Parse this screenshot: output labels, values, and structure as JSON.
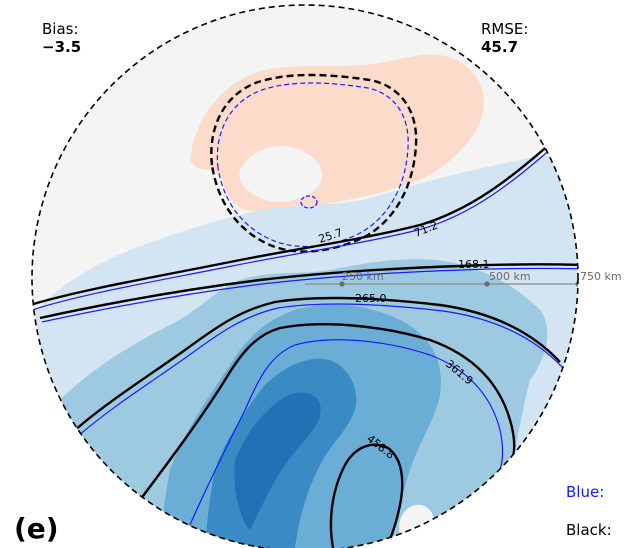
{
  "stats": {
    "bias_label": "Bias:",
    "bias_value": "−3.5",
    "rmse_label": "RMSE:",
    "rmse_value": "45.7"
  },
  "panel_label": "(e)",
  "legend": {
    "blue_label": "Blue:",
    "black_label": "Black:",
    "blue_color": "#1a1aff",
    "black_color": "#000000"
  },
  "range_rings": [
    "250 km",
    "500 km",
    "750 km"
  ],
  "contour_labels": [
    "25.7",
    "71.2",
    "168.1",
    "265.0",
    "361.9",
    "458.8"
  ],
  "colors": {
    "positive_fill": "#fddbcb",
    "neutral_fill": "#f4f4f4",
    "blue_1": "#d3e5f2",
    "blue_2": "#9ecae1",
    "blue_3": "#6aaed6",
    "blue_4": "#3a8bc4",
    "blue_5": "#2370b4",
    "scale_gray": "#888888"
  }
}
